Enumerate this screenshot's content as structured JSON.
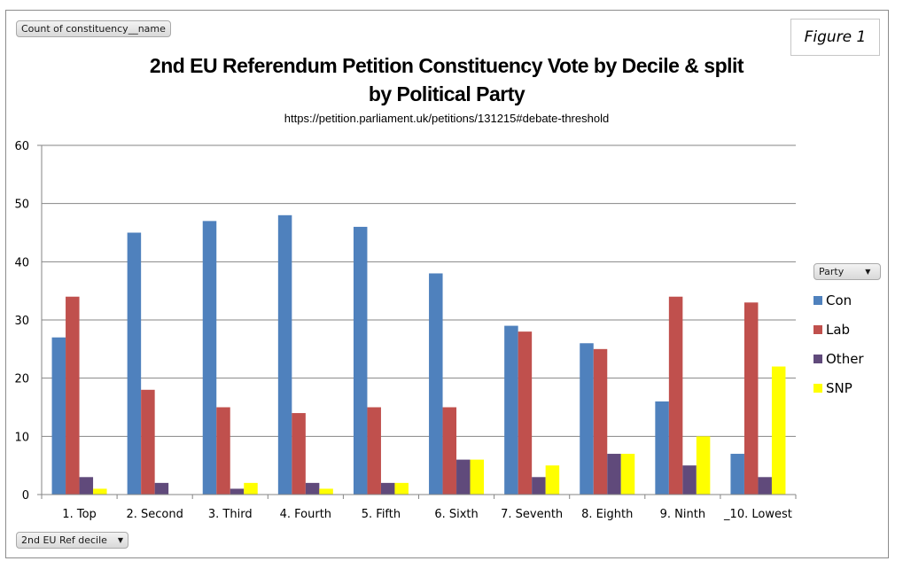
{
  "field_buttons": {
    "value_field": "Count of constituency__name",
    "legend_field": "Party",
    "axis_field": "2nd EU Ref decile"
  },
  "figure_label": "Figure 1",
  "chart_data": {
    "type": "bar",
    "title": "2nd EU Referendum Petition Constituency Vote by Decile & split by Political Party",
    "title_lines": [
      "2nd EU Referendum Petition Constituency Vote by Decile & split",
      "by Political Party"
    ],
    "subtitle": "https://petition.parliament.uk/petitions/131215#debate-threshold",
    "xlabel": "",
    "ylabel": "",
    "ylim": [
      0,
      60
    ],
    "yticks": [
      "0",
      "10",
      "20",
      "30",
      "40",
      "50",
      "60"
    ],
    "grid": true,
    "legend_position": "right",
    "categories": [
      "1. Top",
      "2. Second",
      "3. Third",
      "4. Fourth",
      "5. Fifth",
      "6. Sixth",
      "7. Seventh",
      "8. Eighth",
      "9. Ninth",
      "_10. Lowest"
    ],
    "series": [
      {
        "name": "Con",
        "color": "#4f81bd",
        "values": [
          27,
          45,
          47,
          48,
          46,
          38,
          29,
          26,
          16,
          7
        ]
      },
      {
        "name": "Lab",
        "color": "#c0504d",
        "values": [
          34,
          18,
          15,
          14,
          15,
          15,
          28,
          25,
          34,
          33
        ]
      },
      {
        "name": "Other",
        "color": "#604a7b",
        "values": [
          3,
          2,
          1,
          2,
          2,
          6,
          3,
          7,
          5,
          3
        ]
      },
      {
        "name": "SNP",
        "color": "#ffff00",
        "values": [
          1,
          0,
          2,
          1,
          2,
          6,
          5,
          7,
          10,
          22
        ]
      }
    ]
  }
}
